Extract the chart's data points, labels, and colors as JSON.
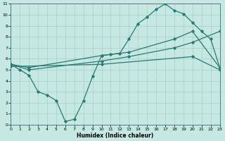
{
  "xlabel": "Humidex (Indice chaleur)",
  "xlim": [
    0,
    23
  ],
  "ylim": [
    0,
    11
  ],
  "xticks": [
    0,
    1,
    2,
    3,
    4,
    5,
    6,
    7,
    8,
    9,
    10,
    11,
    12,
    13,
    14,
    15,
    16,
    17,
    18,
    19,
    20,
    21,
    22,
    23
  ],
  "yticks": [
    0,
    1,
    2,
    3,
    4,
    5,
    6,
    7,
    8,
    9,
    10,
    11
  ],
  "bg_color": "#c5e8e2",
  "grid_color": "#aad4cc",
  "line_color": "#2a7a6e",
  "line1_x": [
    0,
    1,
    2,
    3,
    4,
    5,
    6,
    7,
    8,
    9,
    10,
    11,
    12,
    13,
    14,
    15,
    16,
    17,
    18,
    19,
    20,
    21,
    22,
    23
  ],
  "line1_y": [
    5.5,
    5.0,
    4.5,
    3.0,
    2.7,
    2.2,
    0.3,
    0.5,
    2.2,
    4.4,
    6.3,
    6.4,
    6.5,
    7.8,
    9.2,
    9.8,
    10.5,
    11.0,
    10.4,
    10.1,
    9.3,
    8.5,
    7.8,
    5.2
  ],
  "line2_x": [
    0,
    2,
    10,
    13,
    18,
    20,
    23
  ],
  "line2_y": [
    5.5,
    5.0,
    5.8,
    6.2,
    7.0,
    7.5,
    8.5
  ],
  "line3_x": [
    0,
    2,
    10,
    13,
    18,
    20,
    23
  ],
  "line3_y": [
    5.5,
    5.2,
    6.3,
    6.6,
    7.8,
    8.5,
    5.2
  ],
  "line4_x": [
    0,
    10,
    20,
    23
  ],
  "line4_y": [
    5.3,
    5.5,
    6.2,
    5.0
  ]
}
